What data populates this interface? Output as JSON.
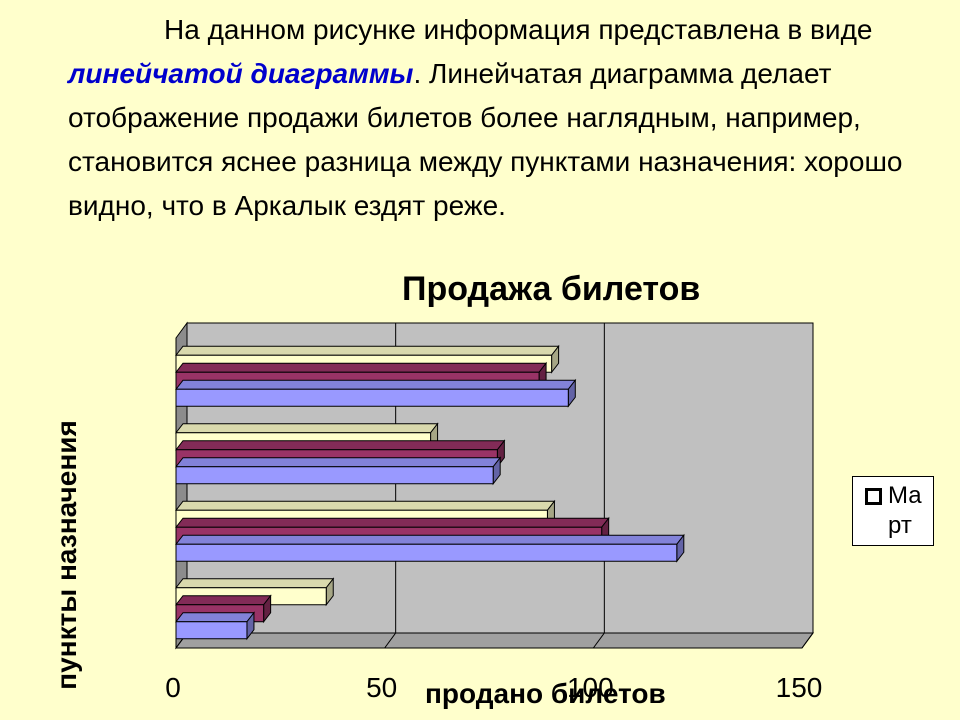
{
  "paragraph": {
    "part1": "На данном рисунке информация представлена в виде ",
    "highlight": "линейчатой диаграммы",
    "part2": ". Линейчатая диаграмма делает отображение продажи билетов более наглядным, например, становится яснее разница между пунктами назначения: хорошо видно, что в Аркалык ездят реже."
  },
  "chart_data": {
    "type": "bar",
    "orientation": "horizontal",
    "style": "3d-clustered",
    "title": "Продажа билетов",
    "xlabel": "продано билетов",
    "ylabel": "пункты назначения",
    "xlim": [
      0,
      150
    ],
    "x_ticks": [
      "0",
      "50",
      "100",
      "150"
    ],
    "grid": true,
    "legend_position": "right",
    "categories": [
      "",
      "",
      "",
      ""
    ],
    "series": [
      {
        "name": "",
        "color": "#9999ff",
        "values": [
          94,
          76,
          120,
          17
        ]
      },
      {
        "name": "",
        "color": "#993366",
        "values": [
          87,
          77,
          102,
          21
        ]
      },
      {
        "name": "Март",
        "color": "#ffffcc",
        "values": [
          90,
          61,
          89,
          36
        ]
      }
    ],
    "plot_colors": {
      "back_wall": "#c0c0c0",
      "floor": "#a0a0a0",
      "gridline": "#000000"
    }
  },
  "legend": {
    "label": "Март"
  }
}
